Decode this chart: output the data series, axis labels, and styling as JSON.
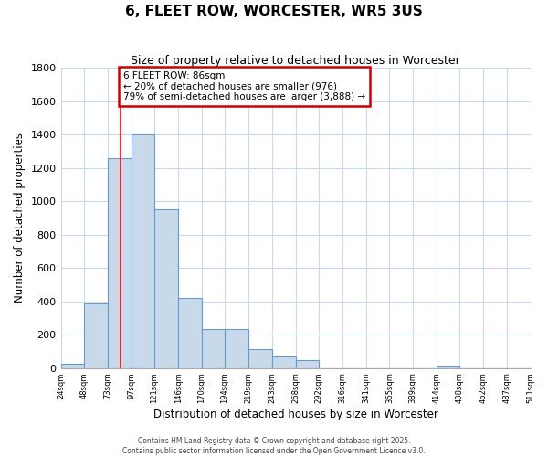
{
  "title": "6, FLEET ROW, WORCESTER, WR5 3US",
  "subtitle": "Size of property relative to detached houses in Worcester",
  "xlabel": "Distribution of detached houses by size in Worcester",
  "ylabel": "Number of detached properties",
  "bar_color": "#c8daea",
  "bar_edge_color": "#6699cc",
  "background_color": "#ffffff",
  "grid_color": "#c8d8f0",
  "bins": [
    24,
    48,
    73,
    97,
    121,
    146,
    170,
    194,
    219,
    243,
    268,
    292,
    316,
    341,
    365,
    389,
    414,
    438,
    462,
    487,
    511
  ],
  "values": [
    25,
    390,
    1260,
    1400,
    950,
    420,
    235,
    235,
    115,
    70,
    50,
    0,
    0,
    0,
    0,
    0,
    15,
    0,
    0,
    0
  ],
  "red_line_x": 86,
  "annotation_title": "6 FLEET ROW: 86sqm",
  "annotation_line1": "← 20% of detached houses are smaller (976)",
  "annotation_line2": "79% of semi-detached houses are larger (3,888) →",
  "annotation_box_color": "#ffffff",
  "annotation_box_edge": "#cc0000",
  "ylim": [
    0,
    1800
  ],
  "yticks": [
    0,
    200,
    400,
    600,
    800,
    1000,
    1200,
    1400,
    1600,
    1800
  ],
  "tick_labels": [
    "24sqm",
    "48sqm",
    "73sqm",
    "97sqm",
    "121sqm",
    "146sqm",
    "170sqm",
    "194sqm",
    "219sqm",
    "243sqm",
    "268sqm",
    "292sqm",
    "316sqm",
    "341sqm",
    "365sqm",
    "389sqm",
    "414sqm",
    "438sqm",
    "462sqm",
    "487sqm",
    "511sqm"
  ],
  "footer_line1": "Contains HM Land Registry data © Crown copyright and database right 2025.",
  "footer_line2": "Contains public sector information licensed under the Open Government Licence v3.0."
}
